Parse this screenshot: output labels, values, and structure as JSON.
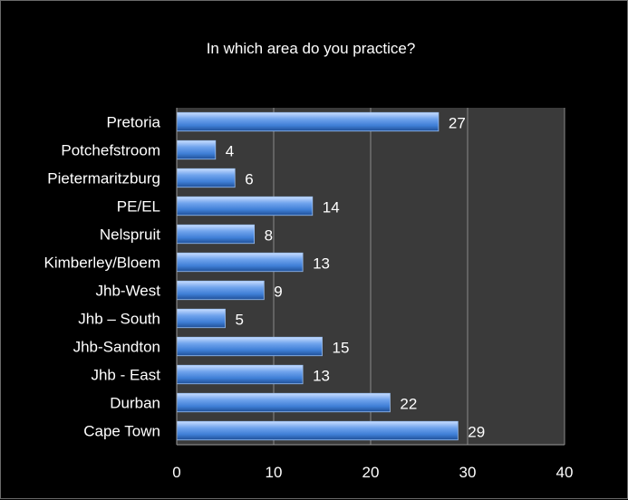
{
  "chart_data": {
    "type": "bar",
    "orientation": "horizontal",
    "title": "In which area do you practice?",
    "xlabel": "",
    "ylabel": "",
    "categories": [
      "Pretoria",
      "Potchefstroom",
      "Pietermaritzburg",
      "PE/EL",
      "Nelspruit",
      "Kimberley/Bloem",
      "Jhb-West",
      "Jhb – South",
      "Jhb-Sandton",
      "Jhb - East",
      "Durban",
      "Cape Town"
    ],
    "values": [
      27,
      4,
      6,
      14,
      8,
      13,
      9,
      5,
      15,
      13,
      22,
      29
    ],
    "xlim": [
      0,
      40
    ],
    "xticks": [
      0,
      10,
      20,
      30,
      40
    ],
    "grid": true,
    "legend": "none",
    "colors": {
      "bar": "#4a86d8",
      "bar_light": "#c6dcff",
      "bar_dark": "#1f4f96",
      "plot_bg": "#3a3a3a",
      "grid": "#8a8a8a",
      "text": "#ffffff"
    }
  }
}
